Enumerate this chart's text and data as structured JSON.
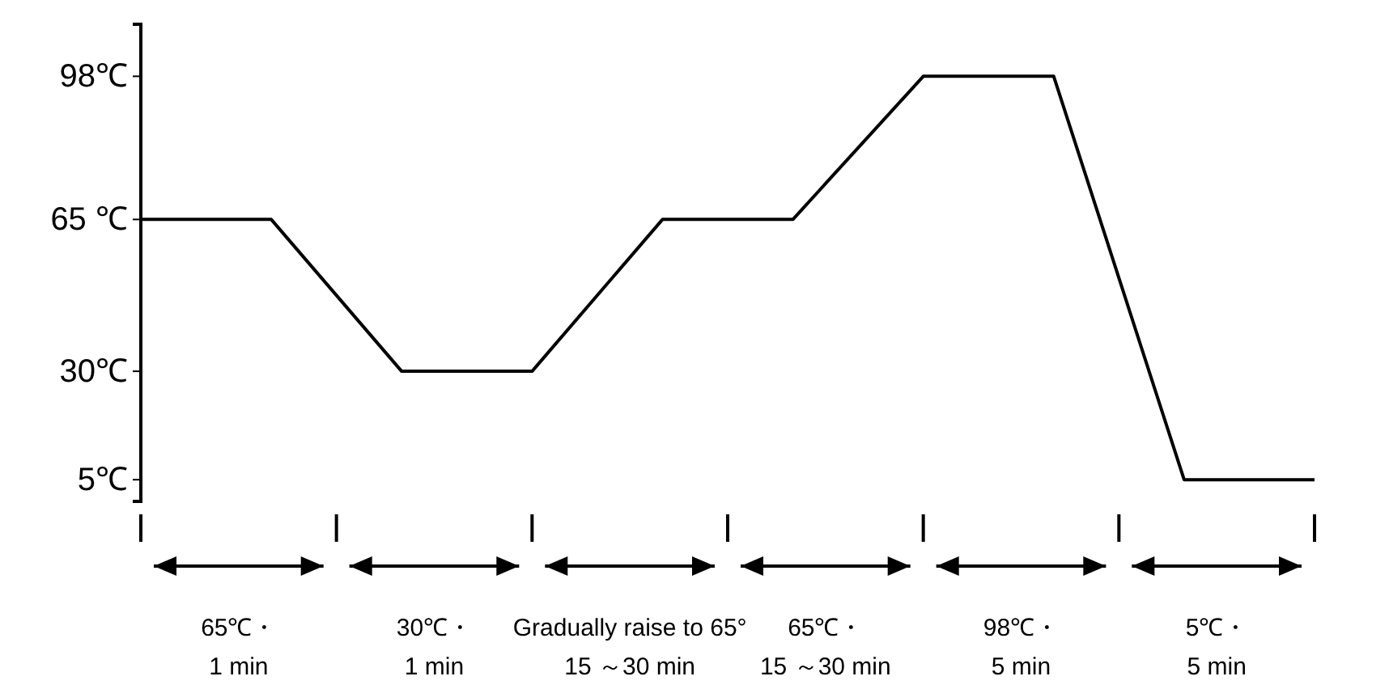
{
  "chart_data": {
    "type": "line",
    "categories": [
      null,
      null,
      null,
      null,
      null,
      null,
      null,
      null,
      null,
      null
    ],
    "series": [
      {
        "color": "#000000",
        "values": [
          65,
          65,
          30,
          30,
          65,
          65,
          98,
          98,
          5,
          5
        ]
      }
    ],
    "ylim": [
      0,
      110
    ],
    "yticks": [
      {
        "value": 5,
        "label": "5℃"
      },
      {
        "value": 30,
        "label": "30℃"
      },
      {
        "value": 65,
        "label": "65 ℃"
      },
      {
        "value": 98,
        "label": "98℃"
      }
    ],
    "tick_labels": "y",
    "grid": false,
    "marker": "none",
    "line_style": "solid",
    "annotations": [
      "65℃・\n1 min",
      "30℃・\n1 min",
      "Gradually raise to 65°\n15 ～30 min",
      "65℃・\n15 ～30 min",
      "98℃・\n5 min",
      "5℃・\n5 min"
    ]
  }
}
